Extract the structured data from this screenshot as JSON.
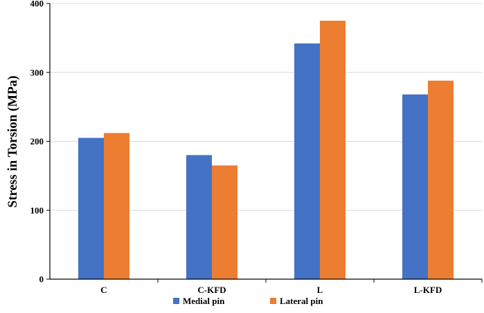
{
  "chart_data": {
    "type": "bar",
    "title": "",
    "xlabel": "",
    "ylabel": "Stress in Torsion (MPa)",
    "ylim": [
      0,
      400
    ],
    "yticks": [
      0,
      100,
      200,
      300,
      400
    ],
    "grid": true,
    "legend_position": "bottom",
    "categories": [
      "C",
      "C-KFD",
      "L",
      "L-KFD"
    ],
    "series": [
      {
        "name": "Medial pin",
        "color": "#4472C4",
        "values": [
          205,
          180,
          342,
          268
        ]
      },
      {
        "name": "Lateral pin",
        "color": "#ED7D31",
        "values": [
          212,
          165,
          375,
          288
        ]
      }
    ]
  }
}
